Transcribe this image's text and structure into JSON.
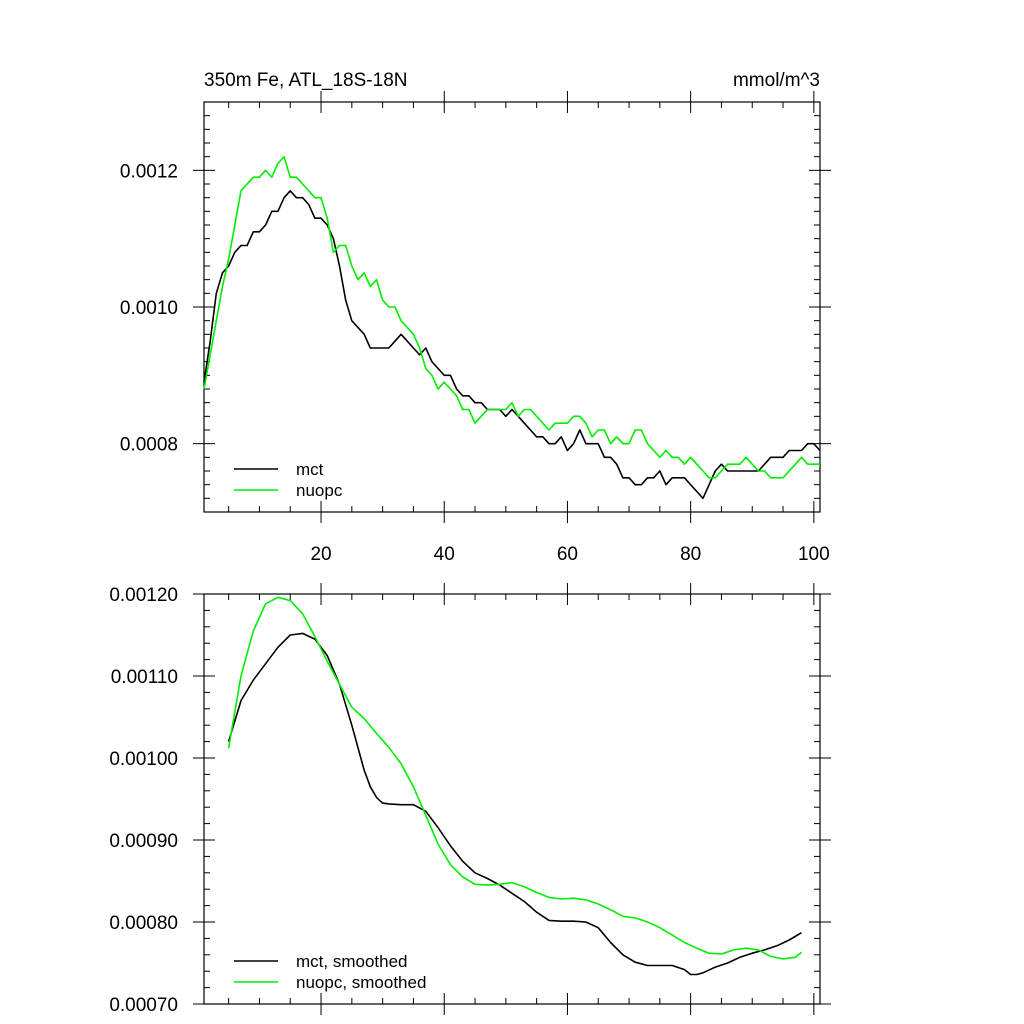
{
  "colors": {
    "mct": "#000000",
    "nuopc": "#00ee00"
  },
  "chart_data": [
    {
      "type": "line",
      "title_left": "350m Fe, ATL_18S-18N",
      "title_right": "mmol/m^3",
      "xlim": [
        1,
        101
      ],
      "ylim": [
        0.0007,
        0.0013
      ],
      "x_ticks": [
        20,
        40,
        60,
        80,
        100
      ],
      "x_tick_labels": [
        "20",
        "40",
        "60",
        "80",
        "100"
      ],
      "y_ticks": [
        0.0008,
        0.001,
        0.0012
      ],
      "y_tick_labels": [
        "0.0008",
        "0.0010",
        "0.0012"
      ],
      "legend": [
        "mct",
        "nuopc"
      ],
      "legend_position": "bottom-left",
      "series": [
        {
          "name": "mct",
          "color_key": "mct",
          "x": [
            1,
            2,
            3,
            4,
            5,
            6,
            7,
            8,
            9,
            10,
            11,
            12,
            13,
            14,
            15,
            16,
            17,
            18,
            19,
            20,
            21,
            22,
            23,
            24,
            25,
            26,
            27,
            28,
            29,
            30,
            31,
            32,
            33,
            34,
            35,
            36,
            37,
            38,
            39,
            40,
            41,
            42,
            43,
            44,
            45,
            46,
            47,
            48,
            49,
            50,
            51,
            52,
            53,
            54,
            55,
            56,
            57,
            58,
            59,
            60,
            61,
            62,
            63,
            64,
            65,
            66,
            67,
            68,
            69,
            70,
            71,
            72,
            73,
            74,
            75,
            76,
            77,
            78,
            79,
            80,
            81,
            82,
            83,
            84,
            85,
            86,
            87,
            88,
            89,
            90,
            91,
            92,
            93,
            94,
            95,
            96,
            97,
            98,
            99,
            100,
            101
          ],
          "values": [
            0.00089,
            0.00095,
            0.00102,
            0.00105,
            0.00106,
            0.00108,
            0.00109,
            0.00109,
            0.00111,
            0.00111,
            0.00112,
            0.00114,
            0.00114,
            0.00116,
            0.00117,
            0.00116,
            0.00116,
            0.00115,
            0.00113,
            0.00113,
            0.00112,
            0.0011,
            0.00106,
            0.00101,
            0.00098,
            0.00097,
            0.00096,
            0.00094,
            0.00094,
            0.00094,
            0.00094,
            0.00095,
            0.00096,
            0.00095,
            0.00094,
            0.00093,
            0.00094,
            0.00092,
            0.00091,
            0.0009,
            0.0009,
            0.00088,
            0.00087,
            0.00087,
            0.00086,
            0.00086,
            0.00085,
            0.00085,
            0.00085,
            0.00084,
            0.00085,
            0.00084,
            0.00083,
            0.00082,
            0.00081,
            0.00081,
            0.0008,
            0.0008,
            0.00081,
            0.00079,
            0.0008,
            0.00082,
            0.0008,
            0.0008,
            0.0008,
            0.00078,
            0.00078,
            0.00077,
            0.00075,
            0.00075,
            0.00074,
            0.00074,
            0.00075,
            0.00075,
            0.00076,
            0.00074,
            0.00075,
            0.00075,
            0.00075,
            0.00074,
            0.00073,
            0.00072,
            0.00074,
            0.00076,
            0.00077,
            0.00076,
            0.00076,
            0.00076,
            0.00076,
            0.00076,
            0.00076,
            0.00077,
            0.00078,
            0.00078,
            0.00078,
            0.00079,
            0.00079,
            0.00079,
            0.0008,
            0.0008,
            0.00079
          ]
        },
        {
          "name": "nuopc",
          "color_key": "nuopc",
          "x": [
            1,
            2,
            3,
            4,
            5,
            6,
            7,
            8,
            9,
            10,
            11,
            12,
            13,
            14,
            15,
            16,
            17,
            18,
            19,
            20,
            21,
            22,
            23,
            24,
            25,
            26,
            27,
            28,
            29,
            30,
            31,
            32,
            33,
            34,
            35,
            36,
            37,
            38,
            39,
            40,
            41,
            42,
            43,
            44,
            45,
            46,
            47,
            48,
            49,
            50,
            51,
            52,
            53,
            54,
            55,
            56,
            57,
            58,
            59,
            60,
            61,
            62,
            63,
            64,
            65,
            66,
            67,
            68,
            69,
            70,
            71,
            72,
            73,
            74,
            75,
            76,
            77,
            78,
            79,
            80,
            81,
            82,
            83,
            84,
            85,
            86,
            87,
            88,
            89,
            90,
            91,
            92,
            93,
            94,
            95,
            96,
            97,
            98,
            99,
            100,
            101
          ],
          "values": [
            0.00088,
            0.00093,
            0.00098,
            0.00103,
            0.00107,
            0.00112,
            0.00117,
            0.00118,
            0.00119,
            0.00119,
            0.0012,
            0.00119,
            0.00121,
            0.00122,
            0.00119,
            0.00119,
            0.00118,
            0.00117,
            0.00116,
            0.00116,
            0.00113,
            0.00108,
            0.00109,
            0.00109,
            0.00106,
            0.00104,
            0.00105,
            0.00103,
            0.00104,
            0.00101,
            0.001,
            0.001,
            0.00098,
            0.00097,
            0.00096,
            0.00094,
            0.00091,
            0.0009,
            0.00088,
            0.00089,
            0.00088,
            0.00087,
            0.00085,
            0.00085,
            0.00083,
            0.00084,
            0.00085,
            0.00085,
            0.00085,
            0.00085,
            0.00086,
            0.00084,
            0.00085,
            0.00085,
            0.00084,
            0.00083,
            0.00082,
            0.00083,
            0.00083,
            0.00083,
            0.00084,
            0.00084,
            0.00083,
            0.00081,
            0.00082,
            0.00082,
            0.0008,
            0.00081,
            0.0008,
            0.0008,
            0.00082,
            0.00082,
            0.0008,
            0.00079,
            0.00078,
            0.00079,
            0.00078,
            0.00078,
            0.00077,
            0.00078,
            0.00077,
            0.00076,
            0.00075,
            0.00075,
            0.00076,
            0.00077,
            0.00077,
            0.00077,
            0.00078,
            0.00077,
            0.00076,
            0.00076,
            0.00075,
            0.00075,
            0.00075,
            0.00076,
            0.00077,
            0.00078,
            0.00077,
            0.00077,
            0.00077
          ]
        }
      ]
    },
    {
      "type": "line",
      "xlim": [
        1,
        101
      ],
      "ylim": [
        0.0007,
        0.0012
      ],
      "x_ticks": [
        20,
        40,
        60,
        80,
        100
      ],
      "x_tick_labels": [],
      "y_ticks": [
        0.0007,
        0.0008,
        0.0009,
        0.001,
        0.0011,
        0.0012
      ],
      "y_tick_labels": [
        "0.00070",
        "0.00080",
        "0.00090",
        "0.00100",
        "0.00110",
        "0.00120"
      ],
      "legend": [
        "mct, smoothed",
        "nuopc, smoothed"
      ],
      "legend_position": "bottom-left",
      "series": [
        {
          "name": "mct, smoothed",
          "color_key": "mct",
          "x": [
            5,
            7,
            9,
            11,
            13,
            15,
            17,
            19,
            21,
            23,
            25,
            27,
            28,
            29,
            30,
            31,
            33,
            35,
            37,
            39,
            41,
            43,
            45,
            47,
            49,
            51,
            53,
            55,
            57,
            59,
            61,
            63,
            65,
            67,
            69,
            71,
            73,
            75,
            77,
            79,
            80,
            81,
            82,
            84,
            86,
            88,
            90,
            92,
            94,
            96,
            98
          ],
          "values": [
            0.00102,
            0.00107,
            0.001095,
            0.001115,
            0.001135,
            0.00115,
            0.001152,
            0.001145,
            0.001125,
            0.00109,
            0.00104,
            0.000985,
            0.000965,
            0.000952,
            0.000945,
            0.000944,
            0.000943,
            0.000943,
            0.000935,
            0.000915,
            0.000893,
            0.000874,
            0.00086,
            0.000853,
            0.000845,
            0.000835,
            0.000825,
            0.000812,
            0.000802,
            0.000801,
            0.000801,
            0.0008,
            0.000793,
            0.000775,
            0.00076,
            0.000751,
            0.000747,
            0.000747,
            0.000747,
            0.000742,
            0.000736,
            0.000736,
            0.000738,
            0.000745,
            0.00075,
            0.000757,
            0.000762,
            0.000766,
            0.000771,
            0.000778,
            0.000787
          ]
        },
        {
          "name": "nuopc, smoothed",
          "color_key": "nuopc",
          "x": [
            5,
            7,
            9,
            11,
            13,
            15,
            17,
            19,
            21,
            23,
            25,
            27,
            29,
            31,
            33,
            35,
            37,
            39,
            41,
            43,
            45,
            47,
            49,
            51,
            53,
            55,
            57,
            59,
            61,
            63,
            65,
            67,
            69,
            71,
            73,
            75,
            77,
            79,
            81,
            83,
            85,
            87,
            89,
            91,
            93,
            95,
            97,
            98
          ],
          "values": [
            0.001012,
            0.0011,
            0.001155,
            0.001188,
            0.001196,
            0.001192,
            0.001176,
            0.001148,
            0.001118,
            0.00109,
            0.001062,
            0.001048,
            0.00103,
            0.001013,
            0.000993,
            0.000965,
            0.00093,
            0.000895,
            0.00087,
            0.000855,
            0.000846,
            0.000845,
            0.000846,
            0.000848,
            0.000843,
            0.000836,
            0.00083,
            0.000828,
            0.000829,
            0.000827,
            0.000822,
            0.000815,
            0.000807,
            0.000805,
            0.0008,
            0.000793,
            0.000784,
            0.000775,
            0.000768,
            0.000762,
            0.000761,
            0.000766,
            0.000768,
            0.000766,
            0.000758,
            0.000755,
            0.000757,
            0.000763
          ]
        }
      ]
    }
  ]
}
